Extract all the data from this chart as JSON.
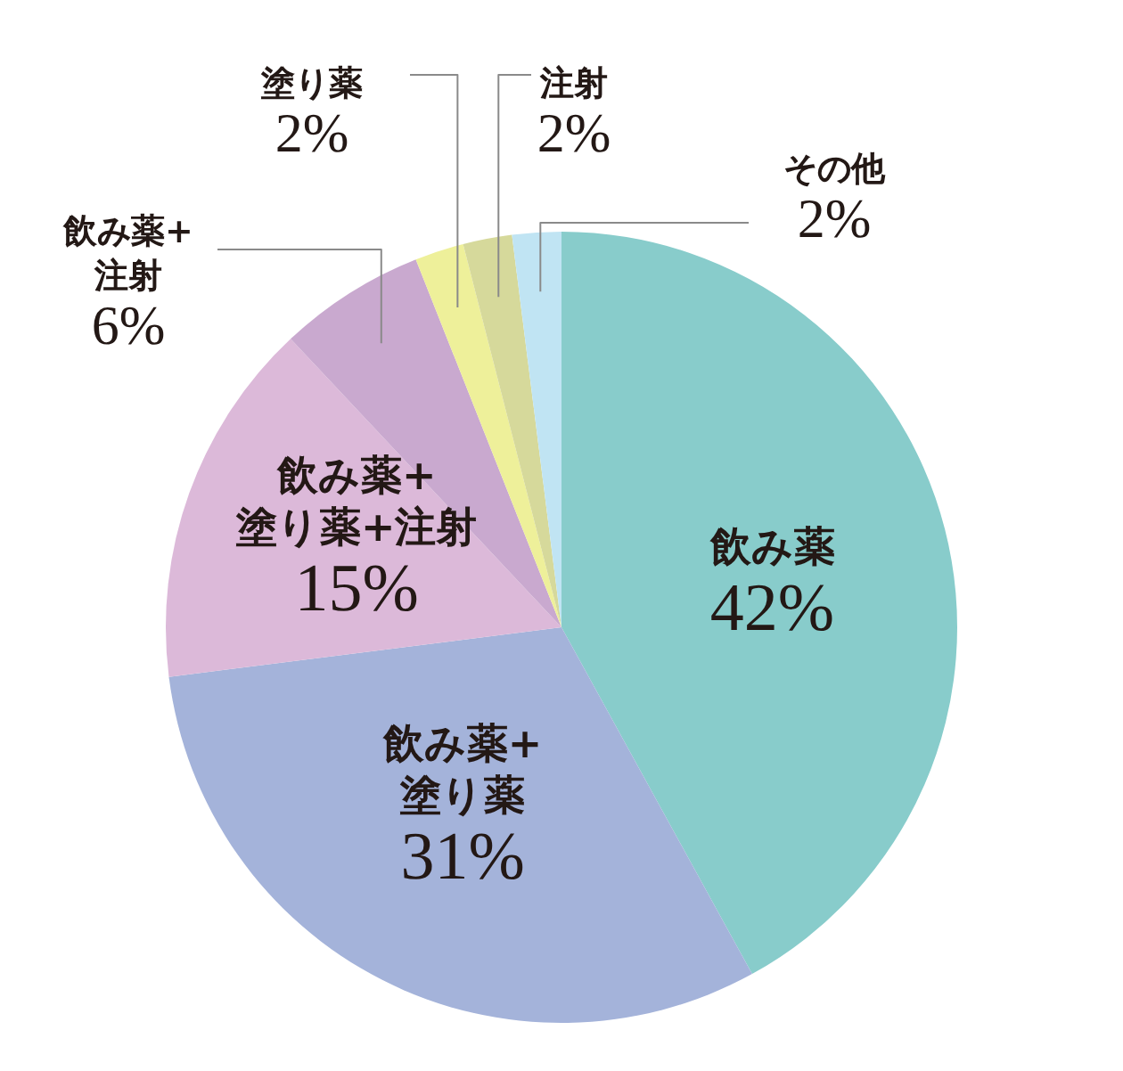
{
  "chart_data": {
    "type": "pie",
    "categories": [
      "飲み薬",
      "飲み薬+\n塗り薬",
      "飲み薬+\n塗り薬+注射",
      "飲み薬+\n注射",
      "塗り薬",
      "注射",
      "その他"
    ],
    "values": [
      42,
      31,
      15,
      6,
      2,
      2,
      2
    ],
    "value_labels": [
      "42%",
      "31%",
      "15%",
      "6%",
      "2%",
      "2%",
      "2%"
    ],
    "colors": [
      "#88cccb",
      "#a4b3da",
      "#dcb9d9",
      "#c9a9cf",
      "#eef09a",
      "#d6d99b",
      "#c0e4f3"
    ]
  }
}
